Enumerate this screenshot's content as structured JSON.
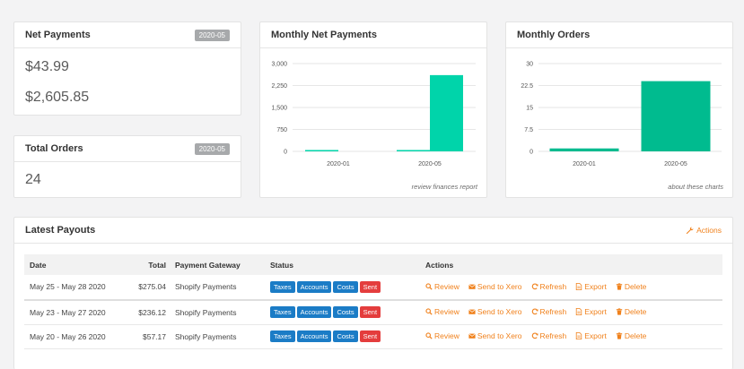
{
  "net_payments": {
    "title": "Net Payments",
    "badge": "2020-05",
    "value_1": "$43.99",
    "value_2": "$2,605.85"
  },
  "total_orders": {
    "title": "Total Orders",
    "badge": "2020-05",
    "value": "24"
  },
  "monthly_net_payments": {
    "title": "Monthly Net Payments",
    "footer_link": "review finances report"
  },
  "monthly_orders": {
    "title": "Monthly Orders",
    "footer_link": "about these charts"
  },
  "chart_data": [
    {
      "type": "bar",
      "title": "Monthly Net Payments",
      "categories": [
        "2020-01",
        "2020-05"
      ],
      "series": [
        {
          "values": [
            43.99,
            43.99
          ],
          "color": "#00d4aa"
        },
        {
          "values": [
            0,
            2605.85
          ],
          "color": "#00d4aa"
        }
      ],
      "yticks": [
        "0",
        "750",
        "1,500",
        "2,250",
        "3,000"
      ],
      "ylim": [
        0,
        3000
      ]
    },
    {
      "type": "bar",
      "title": "Monthly Orders",
      "categories": [
        "2020-01",
        "2020-05"
      ],
      "values": [
        1,
        24
      ],
      "color": "#00bb8f",
      "yticks": [
        "0",
        "7.5",
        "15",
        "22.5",
        "30"
      ],
      "ylim": [
        0,
        30
      ]
    }
  ],
  "payouts": {
    "title": "Latest Payouts",
    "actions_label": "Actions",
    "columns": [
      "Date",
      "Total",
      "Payment Gateway",
      "Status",
      "Actions"
    ],
    "status_tags": [
      "Taxes",
      "Accounts",
      "Costs",
      "Sent"
    ],
    "row_actions": [
      "Review",
      "Send to Xero",
      "Refresh",
      "Export",
      "Delete"
    ],
    "rows": [
      {
        "date": "May 25 - May 28 2020",
        "total": "$275.04",
        "gateway": "Shopify Payments"
      },
      {
        "date": "May 23 - May 27 2020",
        "total": "$236.12",
        "gateway": "Shopify Payments"
      },
      {
        "date": "May 20 - May 26 2020",
        "total": "$57.17",
        "gateway": "Shopify Payments"
      }
    ]
  },
  "colors": {
    "accent": "#f0811c",
    "tag_blue": "#1b7cc6",
    "tag_red": "#e43d3d",
    "badge_grey": "#a7a9ab"
  }
}
